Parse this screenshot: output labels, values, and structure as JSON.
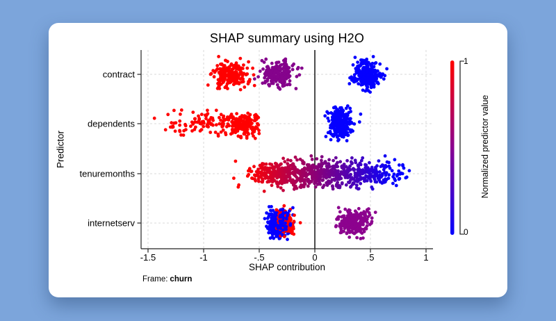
{
  "page": {
    "background_color": "#7ca5db",
    "card_color": "#ffffff"
  },
  "chart_data": {
    "type": "scatter",
    "subtype": "shap-beeswarm",
    "title": "SHAP summary using H2O",
    "xlabel": "SHAP contribution",
    "ylabel": "Predictor",
    "note_prefix": "Frame:",
    "note_value": "churn",
    "grid": true,
    "zero_line": true,
    "xlim": [
      -1.56,
      1.05
    ],
    "categories": [
      "contract",
      "dependents",
      "tenuremonths",
      "internetserv"
    ],
    "x_ticks": [
      {
        "value": -1.5,
        "label": "-1.5"
      },
      {
        "value": -1.0,
        "label": "-1"
      },
      {
        "value": -0.5,
        "label": "-.5"
      },
      {
        "value": 0.0,
        "label": "0"
      },
      {
        "value": 0.5,
        "label": ".5"
      },
      {
        "value": 1.0,
        "label": "1"
      }
    ],
    "colors": {
      "high": "#ff0000",
      "low": "#0500ff",
      "mid_purple": "#8a0090",
      "axis": "#222222",
      "grid": "#d9d9d9",
      "zero_line": "#000000"
    },
    "colorbar": {
      "title": "Normalized predictor value",
      "max_label": "1",
      "min_label": "0",
      "top_color": "#ff0000",
      "mid_color": "#8a0090",
      "bottom_color": "#0500ff"
    },
    "gradient_map": {
      "x_start": -0.6,
      "x_end": 0.7,
      "from": "#ff0000",
      "to": "#0500ff"
    },
    "clusters": [
      {
        "category": "contract",
        "color": "#ff0000",
        "n": 190,
        "x_center": -0.76,
        "x_spread": 0.075,
        "y_spread": 9,
        "seed": 11
      },
      {
        "category": "contract",
        "color": "#85038c",
        "n": 215,
        "x_center": -0.33,
        "x_spread": 0.068,
        "y_spread": 9.5,
        "seed": 22
      },
      {
        "category": "contract",
        "color": "#0500ff",
        "n": 265,
        "x_center": 0.47,
        "x_spread": 0.062,
        "y_spread": 10.5,
        "seed": 33
      },
      {
        "category": "dependents",
        "color": "#ff0000",
        "n": 150,
        "x_center": -0.64,
        "x_spread": 0.1,
        "y_spread": 8.5,
        "seed": 44,
        "x_clip": [
          -1.46,
          -0.5
        ]
      },
      {
        "category": "dependents",
        "color": "#ff0000",
        "n": 105,
        "x_center": -1.0,
        "x_spread": 0.2,
        "y_spread": 8,
        "seed": 55,
        "x_clip": [
          -1.46,
          -0.52
        ]
      },
      {
        "category": "dependents",
        "color": "#0500ff",
        "n": 265,
        "x_center": 0.23,
        "x_spread": 0.05,
        "y_spread": 11.5,
        "seed": 66
      },
      {
        "category": "tenuremonths",
        "gradient": true,
        "n": 340,
        "x_center": -0.27,
        "x_spread": 0.17,
        "y_spread": 10,
        "seed": 77,
        "x_clip": [
          -0.73,
          0.88
        ]
      },
      {
        "category": "tenuremonths",
        "gradient": true,
        "n": 430,
        "x_center": 0.31,
        "x_spread": 0.27,
        "y_spread": 10,
        "seed": 88,
        "x_clip": [
          -0.73,
          0.88
        ]
      },
      {
        "category": "internetserv",
        "color": "#0500ff",
        "n": 235,
        "x_center": -0.33,
        "x_spread": 0.055,
        "y_spread": 10,
        "seed": 99
      },
      {
        "category": "internetserv",
        "color": "#ff0000",
        "n": 115,
        "x_center": -0.26,
        "x_spread": 0.04,
        "y_spread": 8.5,
        "seed": 101
      },
      {
        "category": "internetserv",
        "color": "#0500ff",
        "n": 55,
        "x_center": -0.31,
        "x_spread": 0.05,
        "y_spread": 9,
        "seed": 111
      },
      {
        "category": "internetserv",
        "color": "#8c028e",
        "n": 265,
        "x_center": 0.34,
        "x_spread": 0.07,
        "y_spread": 10,
        "seed": 121
      }
    ]
  }
}
